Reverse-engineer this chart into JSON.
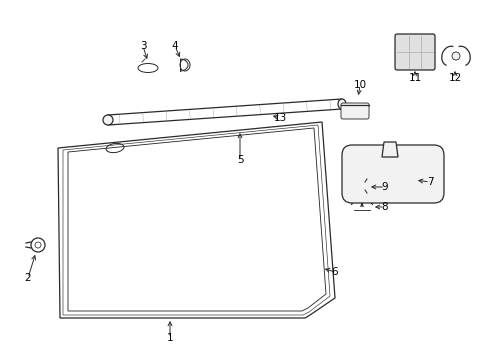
{
  "background_color": "#ffffff",
  "figsize": [
    4.89,
    3.6
  ],
  "dpi": 100,
  "gray": "#2a2a2a",
  "light_gray": "#aaaaaa",
  "fill_light": "#f2f2f2"
}
